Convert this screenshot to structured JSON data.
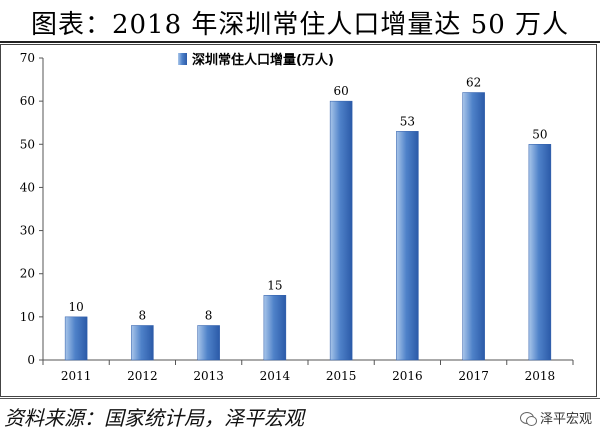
{
  "header": {
    "title": "图表：2018 年深圳常住人口增量达 50 万人"
  },
  "footer": {
    "source": "资料来源：国家统计局，泽平宏观",
    "brand": "泽平宏观"
  },
  "chart_data": {
    "type": "bar",
    "title": "图表：2018 年深圳常住人口增量达 50 万人",
    "xlabel": "",
    "ylabel": "",
    "categories": [
      "2011",
      "2012",
      "2013",
      "2014",
      "2015",
      "2016",
      "2017",
      "2018"
    ],
    "series": [
      {
        "name": "深圳常住人口增量(万人)",
        "values": [
          10,
          8,
          8,
          15,
          60,
          53,
          62,
          50
        ]
      }
    ],
    "ylim": [
      0,
      70
    ],
    "yticks": [
      0,
      10,
      20,
      30,
      40,
      50,
      60,
      70
    ],
    "grid": false,
    "legend": "top-left",
    "data_labels": true,
    "colors": {
      "bar_light": "#a9c6ea",
      "bar_mid": "#4f82c9",
      "bar_dark": "#2b5aa8",
      "axis": "#555555"
    }
  }
}
